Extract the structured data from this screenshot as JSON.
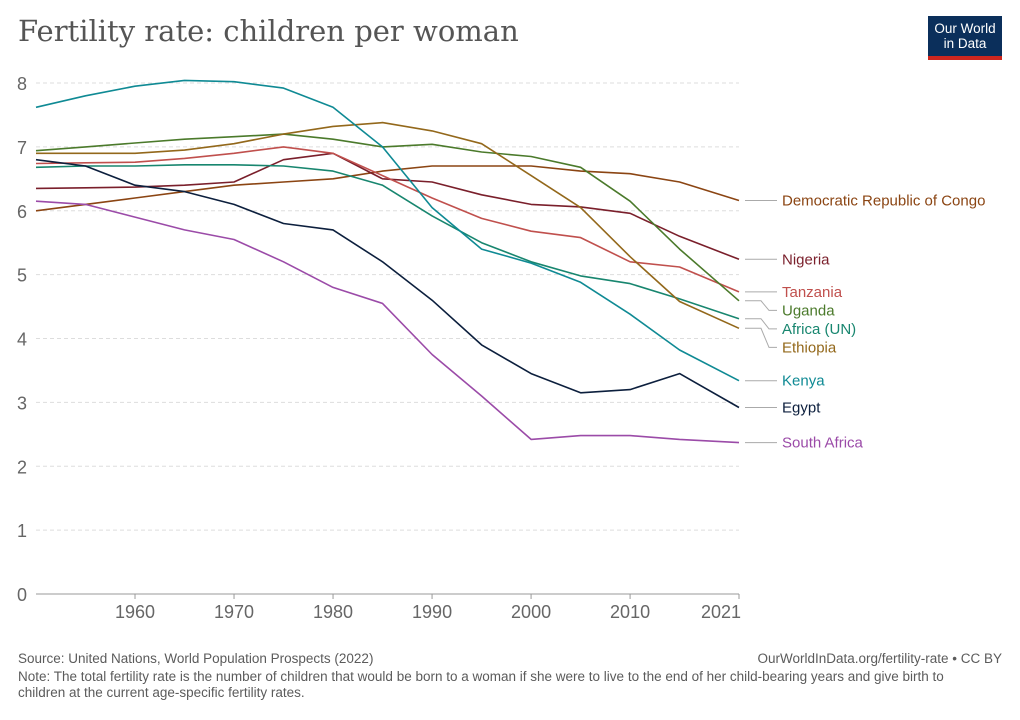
{
  "header": {
    "title": "Fertility rate: children per woman",
    "logo_line1": "Our World",
    "logo_line2": "in Data"
  },
  "footer": {
    "source": "Source: United Nations, World Population Prospects (2022)",
    "url": "OurWorldInData.org/fertility-rate • CC BY",
    "note": "Note: The total fertility rate is the number of children that would be born to a woman if she were to live to the end of her child-bearing years and give birth to children at the current age-specific fertility rates."
  },
  "chart_data": {
    "type": "line",
    "title": "Fertility rate: children per woman",
    "xlabel": "",
    "ylabel": "",
    "xlim": [
      1950,
      2021
    ],
    "ylim": [
      0,
      8
    ],
    "grid": true,
    "legend": "right",
    "x_ticks": [
      1960,
      1970,
      1980,
      1990,
      2000,
      2010,
      2021
    ],
    "y_ticks": [
      0,
      1,
      2,
      3,
      4,
      5,
      6,
      7,
      8
    ],
    "x": [
      1950,
      1955,
      1960,
      1965,
      1970,
      1975,
      1980,
      1985,
      1990,
      1995,
      2000,
      2005,
      2010,
      2015,
      2021
    ],
    "series": [
      {
        "name": "Democratic Republic of Congo",
        "color": "#8b4513",
        "values": [
          6.0,
          6.1,
          6.2,
          6.3,
          6.4,
          6.45,
          6.5,
          6.62,
          6.7,
          6.7,
          6.7,
          6.62,
          6.58,
          6.45,
          6.16
        ]
      },
      {
        "name": "Nigeria",
        "color": "#7a1f2b",
        "values": [
          6.35,
          6.36,
          6.37,
          6.4,
          6.45,
          6.8,
          6.9,
          6.5,
          6.45,
          6.25,
          6.1,
          6.06,
          5.96,
          5.6,
          5.24
        ]
      },
      {
        "name": "Tanzania",
        "color": "#c0504d",
        "values": [
          6.74,
          6.75,
          6.76,
          6.82,
          6.9,
          7.0,
          6.9,
          6.55,
          6.2,
          5.88,
          5.68,
          5.58,
          5.2,
          5.12,
          4.73
        ]
      },
      {
        "name": "Uganda",
        "color": "#4b7a2b",
        "values": [
          6.94,
          7.0,
          7.06,
          7.12,
          7.16,
          7.2,
          7.12,
          7.0,
          7.04,
          6.92,
          6.85,
          6.68,
          6.15,
          5.4,
          4.59
        ]
      },
      {
        "name": "Africa (UN)",
        "color": "#18866f",
        "values": [
          6.68,
          6.7,
          6.7,
          6.72,
          6.72,
          6.7,
          6.62,
          6.4,
          5.92,
          5.5,
          5.2,
          4.98,
          4.86,
          4.62,
          4.31
        ]
      },
      {
        "name": "Ethiopia",
        "color": "#93681b",
        "values": [
          6.9,
          6.9,
          6.9,
          6.95,
          7.05,
          7.2,
          7.32,
          7.38,
          7.25,
          7.05,
          6.55,
          6.05,
          5.28,
          4.58,
          4.16
        ]
      },
      {
        "name": "Kenya",
        "color": "#0f8a94",
        "values": [
          7.62,
          7.8,
          7.95,
          8.04,
          8.02,
          7.92,
          7.62,
          7.0,
          6.05,
          5.4,
          5.18,
          4.88,
          4.38,
          3.82,
          3.34
        ]
      },
      {
        "name": "Egypt",
        "color": "#0c1f3d",
        "values": [
          6.8,
          6.7,
          6.4,
          6.3,
          6.1,
          5.8,
          5.7,
          5.2,
          4.6,
          3.9,
          3.45,
          3.15,
          3.2,
          3.45,
          2.92
        ]
      },
      {
        "name": "South Africa",
        "color": "#9b4ba8",
        "values": [
          6.15,
          6.1,
          5.9,
          5.7,
          5.55,
          5.2,
          4.8,
          4.55,
          3.75,
          3.1,
          2.42,
          2.48,
          2.48,
          2.42,
          2.37
        ]
      }
    ]
  }
}
